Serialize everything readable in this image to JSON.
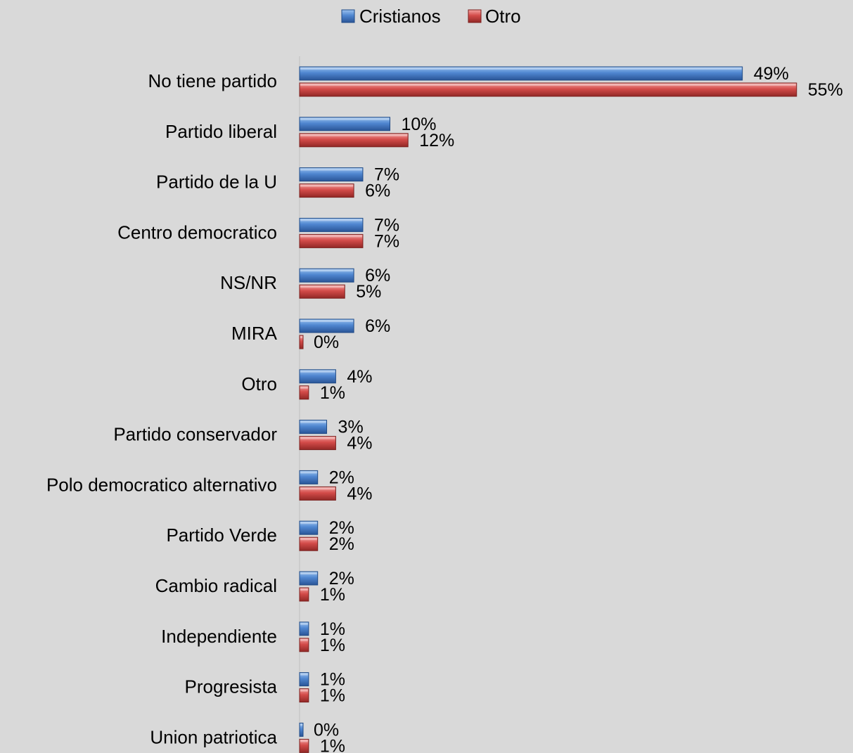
{
  "chart_data": {
    "type": "bar",
    "orientation": "horizontal",
    "title": "",
    "xlabel": "",
    "ylabel": "",
    "xlim": [
      0,
      55
    ],
    "grid": false,
    "legend_position": "top-center",
    "value_suffix": "%",
    "categories": [
      "No tiene partido",
      "Partido liberal",
      "Partido de la U",
      "Centro democratico",
      "NS/NR",
      "MIRA",
      "Otro",
      "Partido conservador",
      "Polo democratico alternativo",
      "Partido Verde",
      "Cambio radical",
      "Independiente",
      "Progresista",
      "Union patriotica"
    ],
    "series": [
      {
        "name": "Cristianos",
        "color": "#4a7ec8",
        "values": [
          49,
          10,
          7,
          7,
          6,
          6,
          4,
          3,
          2,
          2,
          2,
          1,
          1,
          0
        ],
        "labels": [
          "49%",
          "10%",
          "7%",
          "7%",
          "6%",
          "6%",
          "4%",
          "3%",
          "2%",
          "2%",
          "2%",
          "1%",
          "1%",
          "0%"
        ]
      },
      {
        "name": "Otro",
        "color": "#d04a48",
        "values": [
          55,
          12,
          6,
          7,
          5,
          0,
          1,
          4,
          4,
          2,
          1,
          1,
          1,
          1
        ],
        "labels": [
          "55%",
          "12%",
          "6%",
          "7%",
          "5%",
          "0%",
          "1%",
          "4%",
          "4%",
          "2%",
          "1%",
          "1%",
          "1%",
          "1%"
        ]
      }
    ]
  }
}
